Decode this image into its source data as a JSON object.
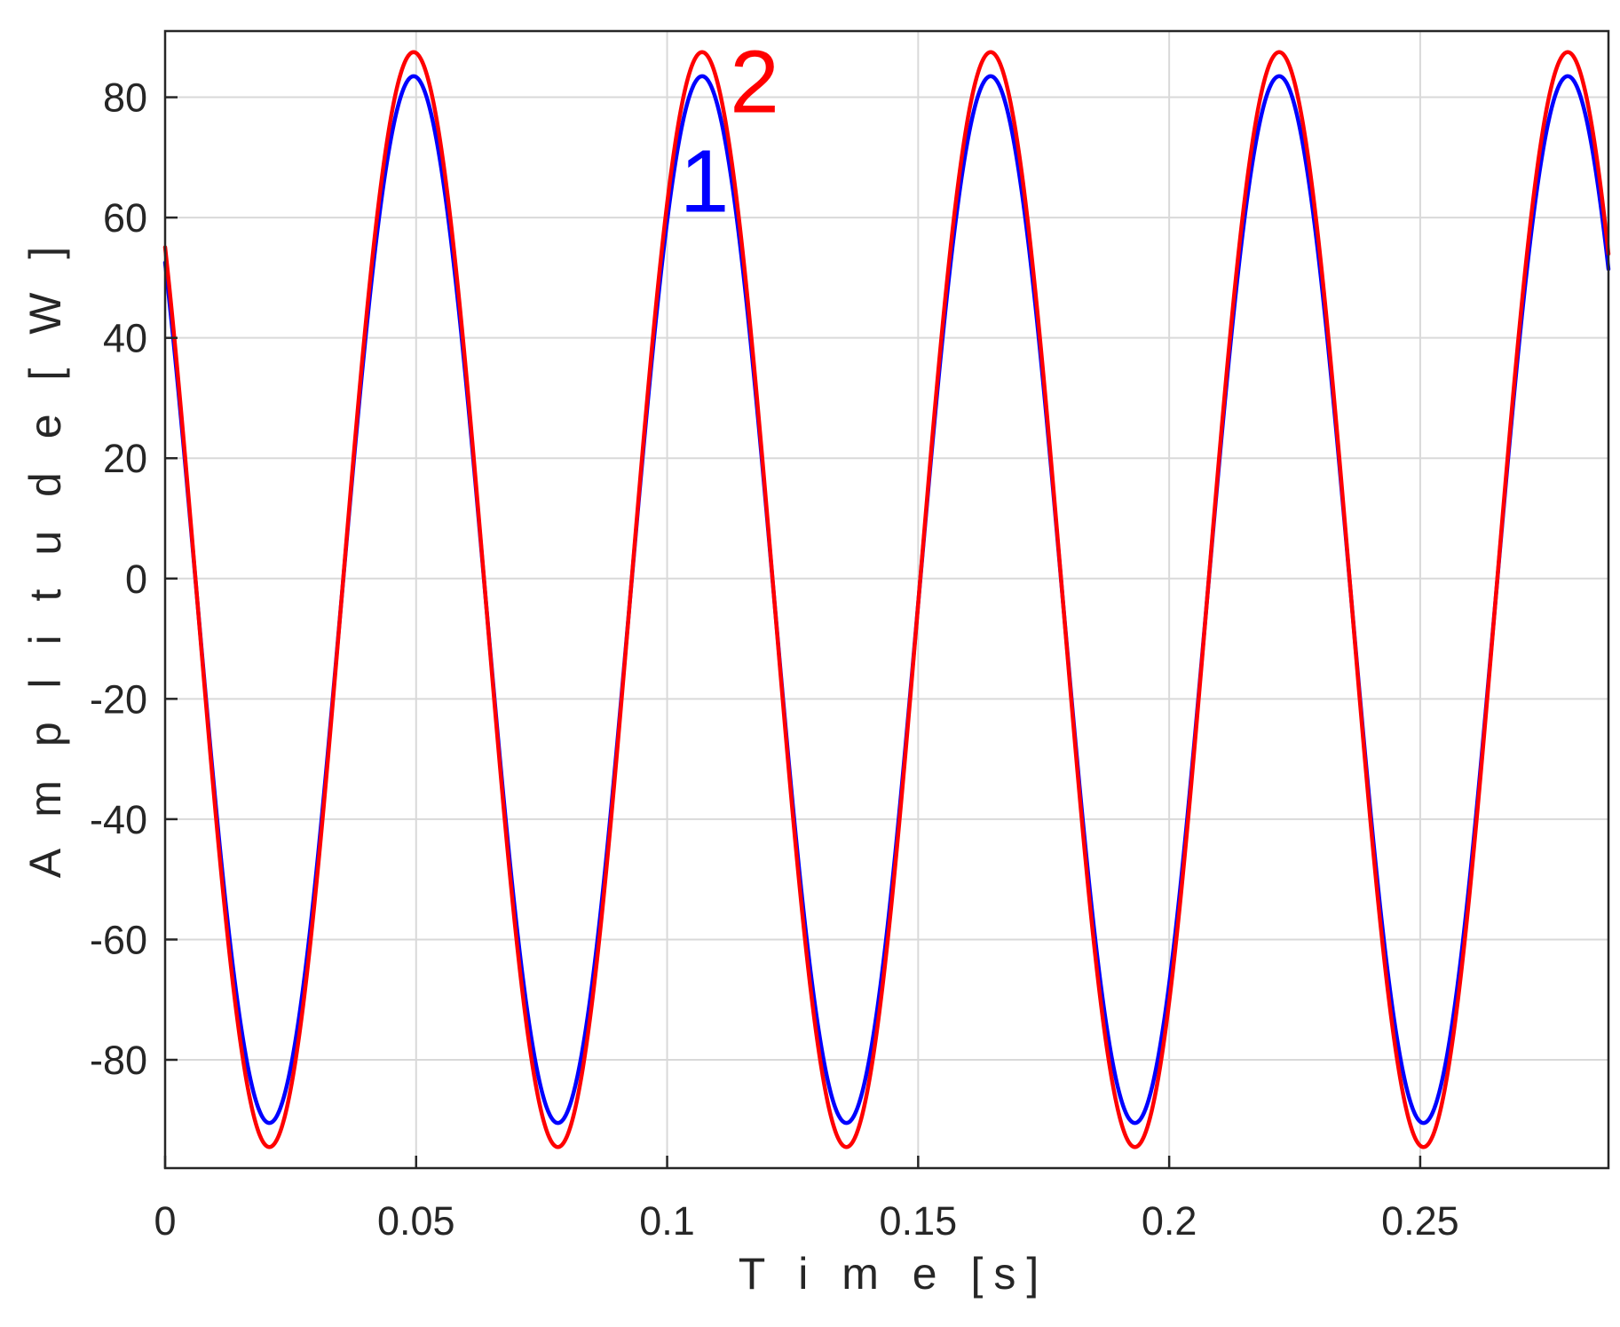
{
  "chart_data": {
    "type": "line",
    "xlabel": "T i m e [s]",
    "ylabel": "A m p l i t u d e [ W ]",
    "xlim": [
      0,
      0.2875
    ],
    "ylim": [
      -98,
      91
    ],
    "xticks": [
      0,
      0.05,
      0.1,
      0.15,
      0.2,
      0.25
    ],
    "xtick_labels": [
      "0",
      "0.05",
      "0.1",
      "0.15",
      "0.2",
      "0.25"
    ],
    "yticks": [
      -80,
      -60,
      -40,
      -20,
      0,
      20,
      40,
      60,
      80
    ],
    "ytick_labels": [
      "-80",
      "-60",
      "-40",
      "-20",
      "0",
      "20",
      "40",
      "60",
      "80"
    ],
    "grid": true,
    "frequency_hz": 17.4,
    "series": [
      {
        "name": "1",
        "color": "#0000ff",
        "peak_max": 83.5,
        "peak_min": -90.5,
        "peak_x": [
          0.0495,
          0.107,
          0.1645,
          0.222,
          0.2795
        ],
        "trough_x": [
          0.021,
          0.0785,
          0.136,
          0.1935,
          0.251
        ],
        "y_at_start": 56
      },
      {
        "name": "2",
        "color": "#ff0000",
        "peak_max": 87.5,
        "peak_min": -94.5,
        "peak_x": [
          0.0495,
          0.107,
          0.1645,
          0.222,
          0.2795
        ],
        "trough_x": [
          0.021,
          0.0785,
          0.136,
          0.1935,
          0.251
        ],
        "y_at_start": 57.5
      }
    ],
    "annotations": [
      {
        "text": "1",
        "color": "#0000ff",
        "series": "1"
      },
      {
        "text": "2",
        "color": "#ff0000",
        "series": "2"
      }
    ]
  }
}
